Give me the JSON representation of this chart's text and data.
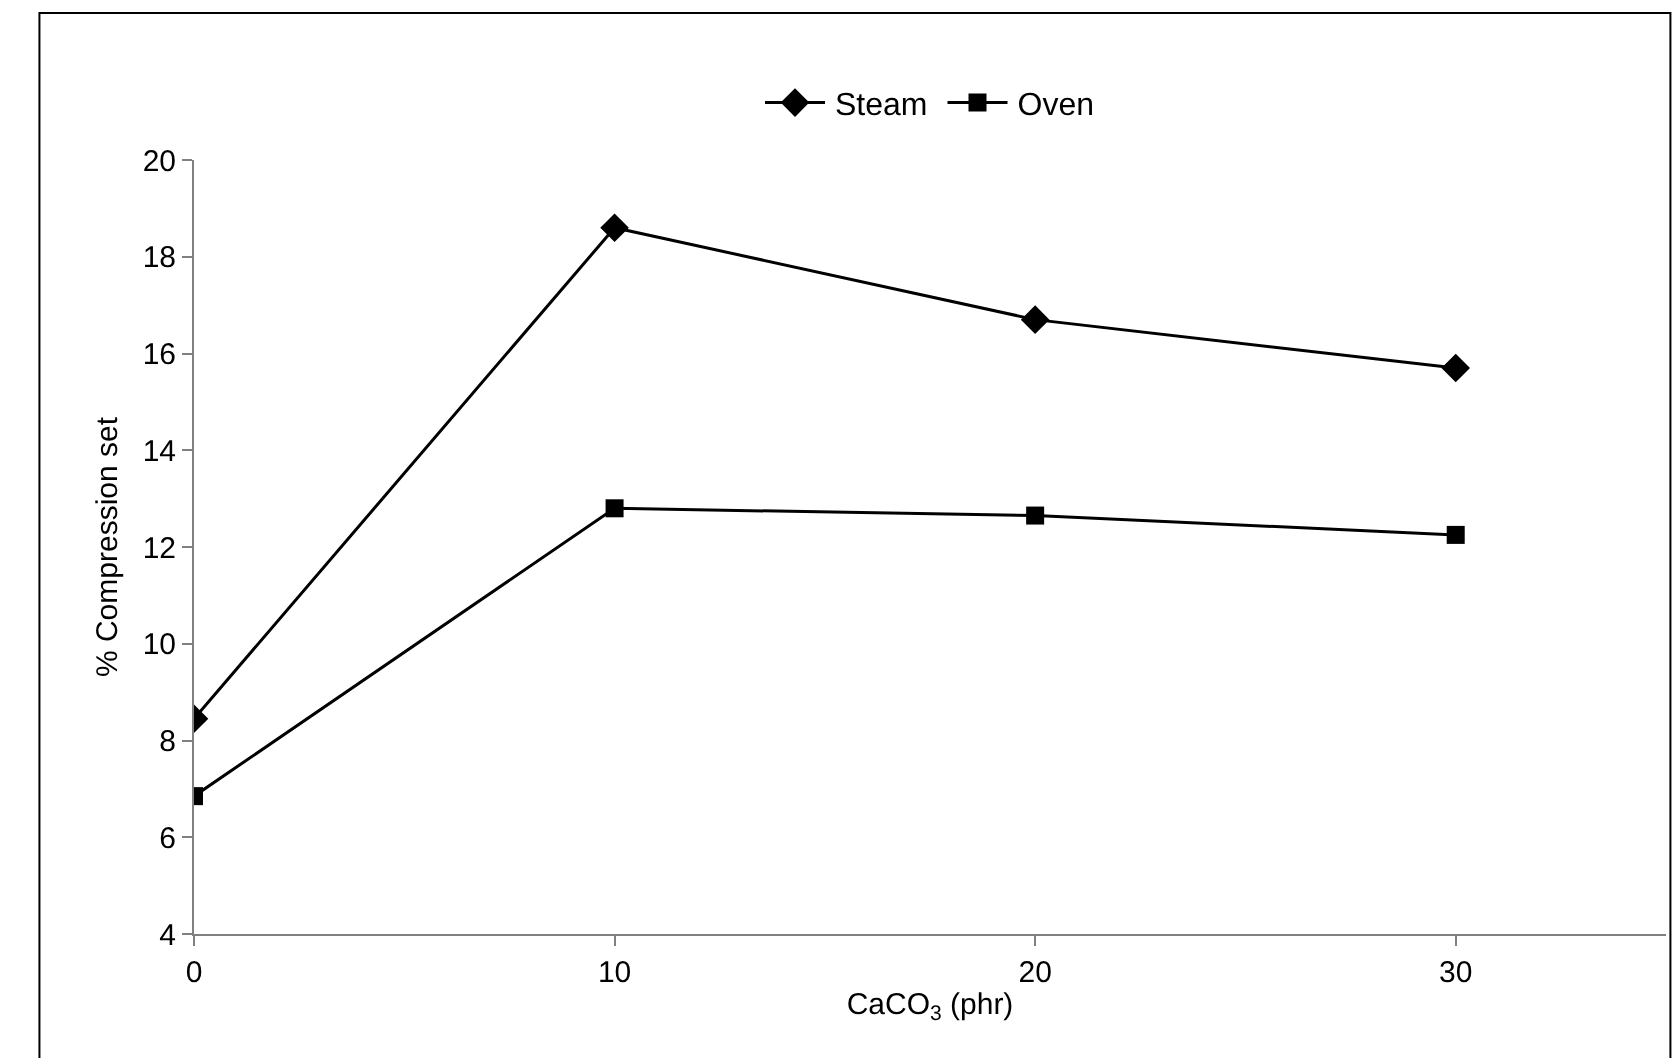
{
  "chart_data": {
    "type": "line",
    "xlabel": "CaCO$_{3}$ (phr)",
    "ylabel": "% Compression set",
    "x": [
      0,
      10,
      20,
      30
    ],
    "series": [
      {
        "name": "Steam",
        "color": "#000000",
        "marker": "diamond",
        "values": [
          8.45,
          18.6,
          16.7,
          15.7
        ]
      },
      {
        "name": "Oven",
        "color": "#000000",
        "marker": "square",
        "values": [
          6.85,
          12.8,
          12.65,
          12.25
        ]
      }
    ],
    "xlim": [
      0,
      35
    ],
    "xticks": [
      0,
      10,
      20,
      30
    ],
    "ylim": [
      4,
      20
    ],
    "yticks": [
      4,
      6,
      8,
      10,
      12,
      14,
      16,
      18,
      20
    ],
    "legend": "top",
    "line_style": "solid"
  }
}
